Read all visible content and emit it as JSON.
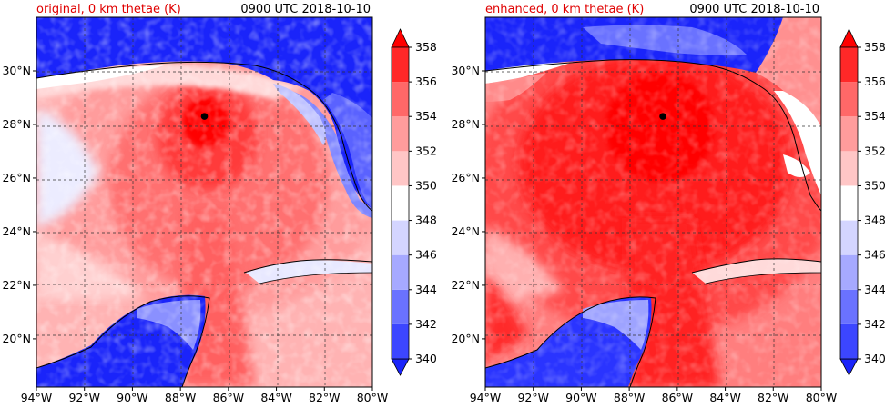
{
  "chart_data": [
    {
      "type": "heatmap",
      "title_left": "original, 0 km thetae (K)",
      "title_right": "0900 UTC 2018-10-10",
      "title_left_color": "#e00000",
      "xticks": [
        "94°W",
        "92°W",
        "90°W",
        "88°W",
        "86°W",
        "84°W",
        "82°W",
        "80°W"
      ],
      "yticks": [
        "30°N",
        "28°N",
        "26°N",
        "24°N",
        "22°N",
        "20°N"
      ],
      "xlim": [
        -94,
        -80
      ],
      "ylim": [
        18.2,
        32.0
      ],
      "grid": true,
      "storm_center": {
        "lon": -87.0,
        "lat": 28.3
      },
      "colorbar": {
        "ticks": [
          "340",
          "342",
          "344",
          "346",
          "348",
          "350",
          "352",
          "354",
          "356",
          "358"
        ],
        "range": [
          340,
          358
        ],
        "extend": "both"
      }
    },
    {
      "type": "heatmap",
      "title_left": "enhanced, 0 km thetae (K)",
      "title_right": "0900 UTC 2018-10-10",
      "title_left_color": "#e00000",
      "xticks": [
        "94°W",
        "92°W",
        "90°W",
        "88°W",
        "86°W",
        "84°W",
        "82°W",
        "80°W"
      ],
      "yticks": [
        "30°N",
        "28°N",
        "26°N",
        "24°N",
        "22°N",
        "20°N"
      ],
      "xlim": [
        -94,
        -80
      ],
      "ylim": [
        18.2,
        32.0
      ],
      "grid": true,
      "storm_center": {
        "lon": -86.6,
        "lat": 28.3
      },
      "colorbar": {
        "ticks": [
          "340",
          "342",
          "344",
          "346",
          "348",
          "350",
          "352",
          "354",
          "356",
          "358"
        ],
        "range": [
          340,
          358
        ],
        "extend": "both"
      }
    }
  ],
  "colors": {
    "deep_blue": "#0a12f5",
    "blue": "#3c46ff",
    "light_blue": "#a6a9ff",
    "pale_blue": "#d4d5ff",
    "white": "#ffffff",
    "pale_red": "#ffc6c6",
    "light_red": "#ff9c9c",
    "red": "#ff6868",
    "strong_red": "#ff2828",
    "deep_red": "#ff0000"
  }
}
